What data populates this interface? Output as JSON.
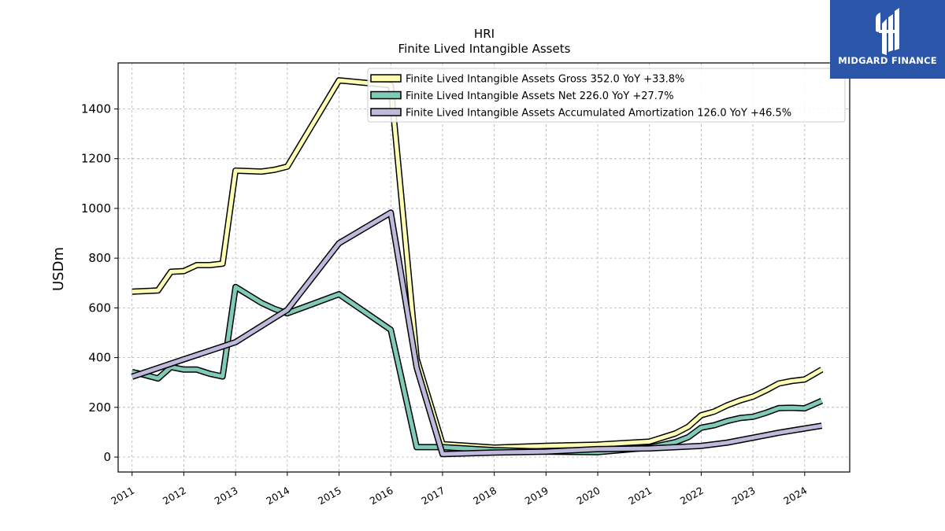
{
  "brand": {
    "name": "MIDGARD FINANCE",
    "color": "#2a55a9"
  },
  "chart_data": {
    "type": "line",
    "title": "HRI",
    "subtitle": "Finite Lived Intangible Assets",
    "xlabel": "",
    "ylabel": "USDm",
    "xlim": [
      2010.73,
      2024.87
    ],
    "ylim": [
      -60,
      1585
    ],
    "yticks": [
      0,
      200,
      400,
      600,
      800,
      1000,
      1200,
      1400
    ],
    "xticks": [
      2011,
      2012,
      2013,
      2014,
      2015,
      2016,
      2017,
      2018,
      2019,
      2020,
      2021,
      2022,
      2023,
      2024
    ],
    "xtick_labels": [
      "2011",
      "2012",
      "2013",
      "2014",
      "2015",
      "2016",
      "2017",
      "2018",
      "2019",
      "2020",
      "2021",
      "2022",
      "2023",
      "2024"
    ],
    "grid": true,
    "legend_position": "top-right",
    "series": [
      {
        "name": "Finite Lived Intangible Assets Gross  352.0 YoY +33.8%",
        "color": "#fdfdb3",
        "points": [
          [
            2011.0,
            665
          ],
          [
            2011.5,
            670
          ],
          [
            2011.75,
            745
          ],
          [
            2012.0,
            748
          ],
          [
            2012.25,
            772
          ],
          [
            2012.5,
            772
          ],
          [
            2012.75,
            778
          ],
          [
            2013.0,
            1152
          ],
          [
            2013.5,
            1148
          ],
          [
            2013.75,
            1155
          ],
          [
            2014.0,
            1168
          ],
          [
            2015.0,
            1515
          ],
          [
            2016.0,
            1495
          ],
          [
            2016.5,
            395
          ],
          [
            2017.0,
            52
          ],
          [
            2018.0,
            38
          ],
          [
            2019.0,
            45
          ],
          [
            2020.0,
            50
          ],
          [
            2021.0,
            62
          ],
          [
            2021.5,
            95
          ],
          [
            2021.75,
            122
          ],
          [
            2022.0,
            168
          ],
          [
            2022.25,
            183
          ],
          [
            2022.5,
            208
          ],
          [
            2022.75,
            228
          ],
          [
            2023.0,
            243
          ],
          [
            2023.25,
            268
          ],
          [
            2023.5,
            296
          ],
          [
            2023.75,
            306
          ],
          [
            2024.0,
            312
          ],
          [
            2024.33,
            352
          ]
        ]
      },
      {
        "name": "Finite Lived Intangible Assets Net  226.0 YoY +27.7%",
        "color": "#80cbb8",
        "points": [
          [
            2011.0,
            342
          ],
          [
            2011.25,
            330
          ],
          [
            2011.5,
            316
          ],
          [
            2011.75,
            362
          ],
          [
            2012.0,
            352
          ],
          [
            2012.25,
            352
          ],
          [
            2012.5,
            335
          ],
          [
            2012.75,
            324
          ],
          [
            2013.0,
            684
          ],
          [
            2013.5,
            620
          ],
          [
            2013.75,
            596
          ],
          [
            2014.0,
            578
          ],
          [
            2015.0,
            655
          ],
          [
            2016.0,
            512
          ],
          [
            2016.5,
            40
          ],
          [
            2017.0,
            40
          ],
          [
            2018.0,
            28
          ],
          [
            2019.0,
            22
          ],
          [
            2020.0,
            20
          ],
          [
            2021.0,
            38
          ],
          [
            2021.5,
            60
          ],
          [
            2021.75,
            80
          ],
          [
            2022.0,
            118
          ],
          [
            2022.25,
            128
          ],
          [
            2022.5,
            145
          ],
          [
            2022.75,
            157
          ],
          [
            2023.0,
            162
          ],
          [
            2023.25,
            178
          ],
          [
            2023.5,
            197
          ],
          [
            2023.75,
            198
          ],
          [
            2024.0,
            196
          ],
          [
            2024.33,
            226
          ]
        ]
      },
      {
        "name": "Finite Lived Intangible Assets Accumulated Amortization  126.0 YoY +46.5%",
        "color": "#bdbadb",
        "points": [
          [
            2011.0,
            323
          ],
          [
            2012.0,
            393
          ],
          [
            2013.0,
            462
          ],
          [
            2014.0,
            592
          ],
          [
            2015.0,
            860
          ],
          [
            2016.0,
            983
          ],
          [
            2016.5,
            360
          ],
          [
            2017.0,
            12
          ],
          [
            2018.0,
            18
          ],
          [
            2019.0,
            22
          ],
          [
            2020.0,
            32
          ],
          [
            2021.0,
            35
          ],
          [
            2022.0,
            45
          ],
          [
            2022.5,
            58
          ],
          [
            2023.0,
            78
          ],
          [
            2023.5,
            98
          ],
          [
            2024.0,
            115
          ],
          [
            2024.33,
            126
          ]
        ]
      }
    ]
  }
}
